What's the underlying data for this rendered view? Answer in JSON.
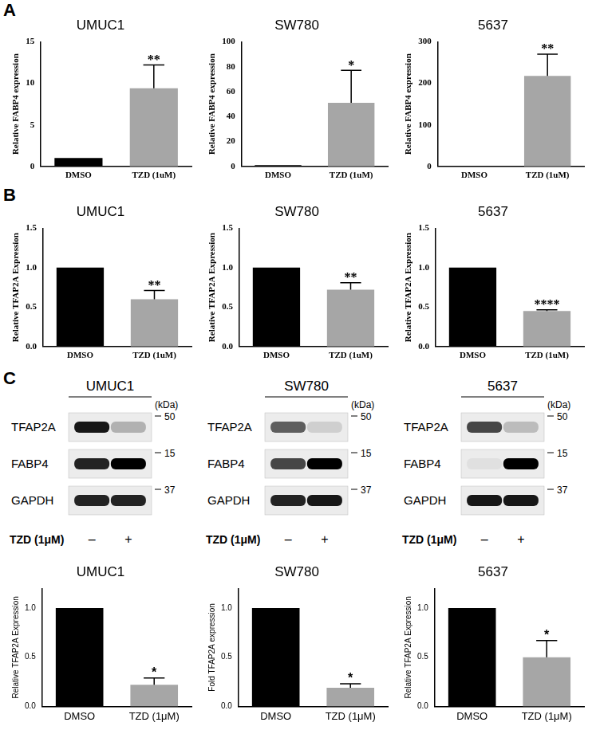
{
  "panel_labels": [
    "A",
    "B",
    "C"
  ],
  "chart_data": [
    {
      "type": "bar",
      "title": "UMUC1",
      "y_label": "Relative FABP4 expression",
      "categories": [
        "DMSO",
        "TZD (1uM)"
      ],
      "values": [
        1,
        9.4
      ],
      "errors": [
        null,
        2.8
      ],
      "significance": [
        null,
        "**"
      ],
      "colors": [
        "#000000",
        "#a6a6a6"
      ],
      "ylim": [
        0,
        15
      ],
      "yticks": [
        0,
        5,
        10,
        15
      ],
      "grid": false
    },
    {
      "type": "bar",
      "title": "SW780",
      "y_label": "Relative FABP4 expression",
      "categories": [
        "DMSO",
        "TZD (1uM)"
      ],
      "values": [
        1,
        51
      ],
      "errors": [
        null,
        26
      ],
      "significance": [
        null,
        "*"
      ],
      "colors": [
        "#000000",
        "#a6a6a6"
      ],
      "ylim": [
        0,
        100
      ],
      "yticks": [
        0,
        20,
        40,
        60,
        80,
        100
      ],
      "grid": false
    },
    {
      "type": "bar",
      "title": "5637",
      "y_label": "Relative FABP4 expression",
      "categories": [
        "DMSO",
        "TZD (1uM)"
      ],
      "values": [
        1,
        218
      ],
      "errors": [
        null,
        52
      ],
      "significance": [
        null,
        "**"
      ],
      "colors": [
        "#000000",
        "#a6a6a6"
      ],
      "ylim": [
        0,
        300
      ],
      "yticks": [
        0,
        100,
        200,
        300
      ],
      "grid": false
    },
    {
      "type": "bar",
      "title": "UMUC1",
      "y_label": "Relative TFAP2A Expression",
      "categories": [
        "DMSO",
        "TZD (1uM)"
      ],
      "values": [
        1,
        0.6
      ],
      "errors": [
        null,
        0.11
      ],
      "significance": [
        null,
        "**"
      ],
      "colors": [
        "#000000",
        "#a6a6a6"
      ],
      "ylim": [
        0,
        1.5
      ],
      "yticks": [
        {
          "value": 0,
          "label": "0.0"
        },
        {
          "value": 0.5,
          "label": "0.5"
        },
        {
          "value": 1,
          "label": "1.0"
        },
        {
          "value": 1.5,
          "label": "1.5"
        }
      ],
      "grid": false
    },
    {
      "type": "bar",
      "title": "SW780",
      "y_label": "Relative TFAP2A Expression",
      "categories": [
        "DMSO",
        "TZD (1uM)"
      ],
      "values": [
        1,
        0.72
      ],
      "errors": [
        null,
        0.09
      ],
      "significance": [
        null,
        "**"
      ],
      "colors": [
        "#000000",
        "#a6a6a6"
      ],
      "ylim": [
        0,
        1.5
      ],
      "yticks": [
        {
          "value": 0,
          "label": "0.0"
        },
        {
          "value": 0.5,
          "label": "0.5"
        },
        {
          "value": 1,
          "label": "1.0"
        },
        {
          "value": 1.5,
          "label": "1.5"
        }
      ],
      "grid": false
    },
    {
      "type": "bar",
      "title": "5637",
      "y_label": "Relative TFAP2A Expression",
      "categories": [
        "DMSO",
        "TZD (1uM)"
      ],
      "values": [
        1,
        0.45
      ],
      "errors": [
        null,
        0.015
      ],
      "significance": [
        null,
        "****"
      ],
      "colors": [
        "#000000",
        "#a6a6a6"
      ],
      "ylim": [
        0,
        1.5
      ],
      "yticks": [
        {
          "value": 0,
          "label": "0.0"
        },
        {
          "value": 0.5,
          "label": "0.5"
        },
        {
          "value": 1,
          "label": "1.0"
        },
        {
          "value": 1.5,
          "label": "1.5"
        }
      ],
      "grid": false
    },
    {
      "type": "bar",
      "title": "UMUC1",
      "y_label": "Relative TFAP2A Expression",
      "categories": [
        "DMSO",
        "TZD (1μM)"
      ],
      "values": [
        1,
        0.22
      ],
      "errors": [
        null,
        0.07
      ],
      "significance": [
        null,
        "*"
      ],
      "colors": [
        "#000000",
        "#a6a6a6"
      ],
      "ylim": [
        0,
        1.2
      ],
      "yticks": [
        {
          "value": 0,
          "label": "0.0"
        },
        {
          "value": 0.5,
          "label": "0.5"
        },
        {
          "value": 1,
          "label": "1.0"
        }
      ],
      "grid": false
    },
    {
      "type": "bar",
      "title": "SW780",
      "y_label": "Fold TFAP2A expression",
      "categories": [
        "DMSO",
        "TZD (1μM)"
      ],
      "values": [
        1,
        0.19
      ],
      "errors": [
        null,
        0.04
      ],
      "significance": [
        null,
        "*"
      ],
      "colors": [
        "#000000",
        "#a6a6a6"
      ],
      "ylim": [
        0,
        1.2
      ],
      "yticks": [
        {
          "value": 0,
          "label": "0.0"
        },
        {
          "value": 0.5,
          "label": "0.5"
        },
        {
          "value": 1,
          "label": "1.0"
        }
      ],
      "grid": false
    },
    {
      "type": "bar",
      "title": "5637",
      "y_label": "Relative TFAP2A Expression",
      "categories": [
        "DMSO",
        "TZD (1μM)"
      ],
      "values": [
        1,
        0.5
      ],
      "errors": [
        null,
        0.17
      ],
      "significance": [
        null,
        "*"
      ],
      "colors": [
        "#000000",
        "#a6a6a6"
      ],
      "ylim": [
        0,
        1.2
      ],
      "yticks": [
        {
          "value": 0,
          "label": "0.0"
        },
        {
          "value": 0.5,
          "label": "0.5"
        },
        {
          "value": 1,
          "label": "1.0"
        }
      ],
      "grid": false
    }
  ],
  "blots": [
    {
      "title": "UMUC1",
      "unit": "(kDa)",
      "rows": [
        {
          "label": "TFAP2A",
          "marker": 50,
          "intensity": [
            0.9,
            0.25
          ]
        },
        {
          "label": "FABP4",
          "marker": 15,
          "intensity": [
            0.85,
            1.0
          ]
        },
        {
          "label": "GAPDH",
          "marker": 37,
          "intensity": [
            0.85,
            0.85
          ]
        }
      ],
      "treatment": "TZD (1μM)",
      "lanes": [
        "–",
        "+"
      ]
    },
    {
      "title": "SW780",
      "unit": "(kDa)",
      "rows": [
        {
          "label": "TFAP2A",
          "marker": 50,
          "intensity": [
            0.6,
            0.12
          ]
        },
        {
          "label": "FABP4",
          "marker": 15,
          "intensity": [
            0.7,
            1.0
          ]
        },
        {
          "label": "GAPDH",
          "marker": 37,
          "intensity": [
            0.85,
            0.9
          ]
        }
      ],
      "treatment": "TZD (1μM)",
      "lanes": [
        "–",
        "+"
      ]
    },
    {
      "title": "5637",
      "unit": "(kDa)",
      "rows": [
        {
          "label": "TFAP2A",
          "marker": 50,
          "intensity": [
            0.7,
            0.2
          ]
        },
        {
          "label": "FABP4",
          "marker": 15,
          "intensity": [
            0.05,
            1.0
          ]
        },
        {
          "label": "GAPDH",
          "marker": 37,
          "intensity": [
            0.9,
            0.9
          ]
        }
      ],
      "treatment": "TZD (1μM)",
      "lanes": [
        "–",
        "+"
      ]
    }
  ]
}
